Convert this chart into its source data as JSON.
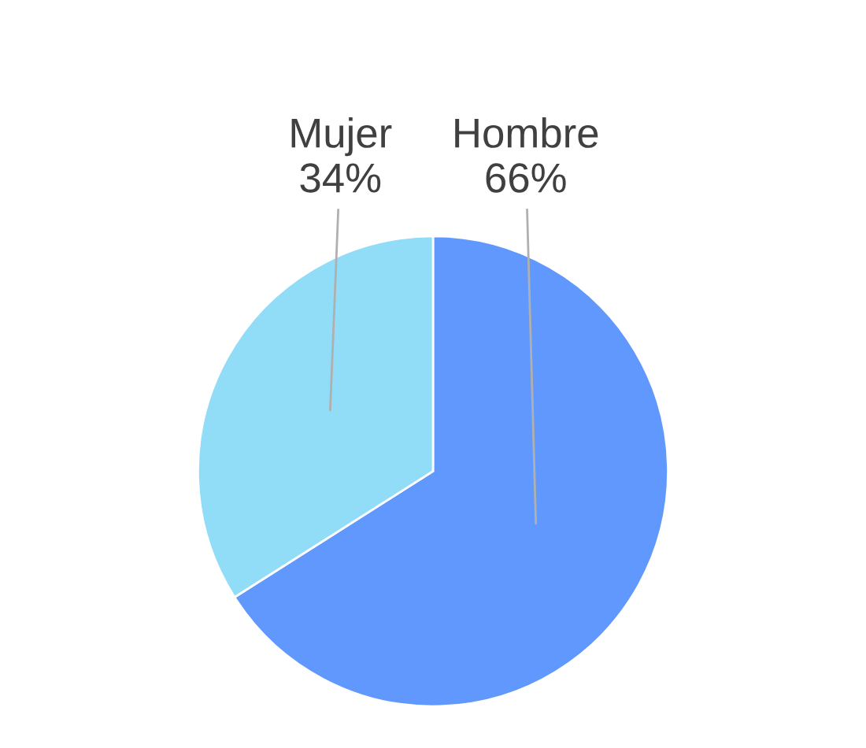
{
  "chart_data": {
    "type": "pie",
    "categories": [
      "Hombre",
      "Mujer"
    ],
    "values": [
      66,
      34
    ],
    "colors": [
      "#6098fd",
      "#91dcf6"
    ],
    "value_labels": [
      "66%",
      "34%"
    ]
  }
}
